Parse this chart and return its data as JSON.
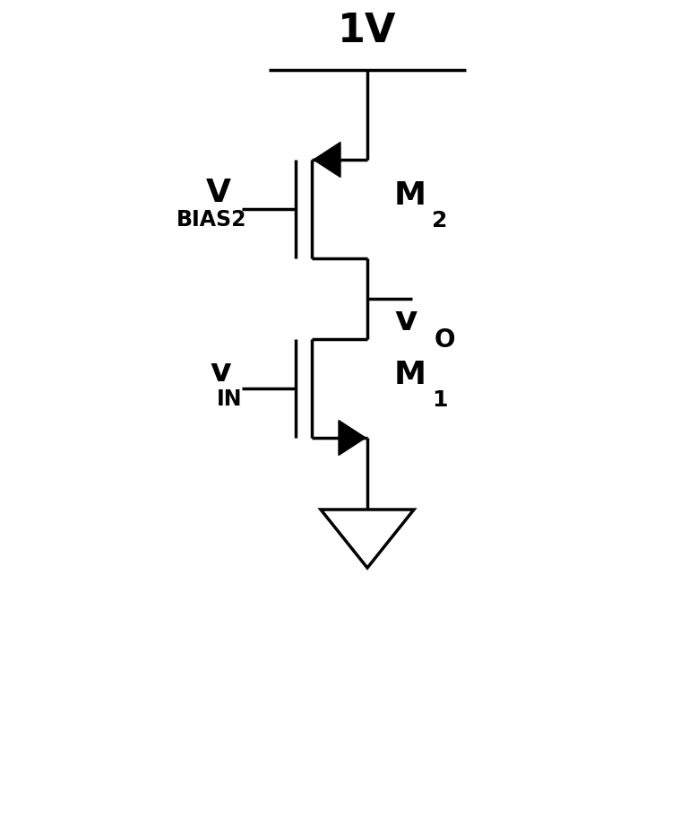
{
  "bg_color": "#ffffff",
  "line_color": "#000000",
  "line_width": 2.5,
  "vdd_label": "1V",
  "vbias2_label_main": "V",
  "vbias2_label_sub": "BIAS2",
  "vin_label_main": "v",
  "vin_label_sub": "IN",
  "vo_label_main": "v",
  "vo_label_sub": "O",
  "m2_label_main": "M",
  "m2_label_sub": "2",
  "m1_label_main": "M",
  "m1_label_sub": "1",
  "fig_width": 7.59,
  "fig_height": 9.33
}
